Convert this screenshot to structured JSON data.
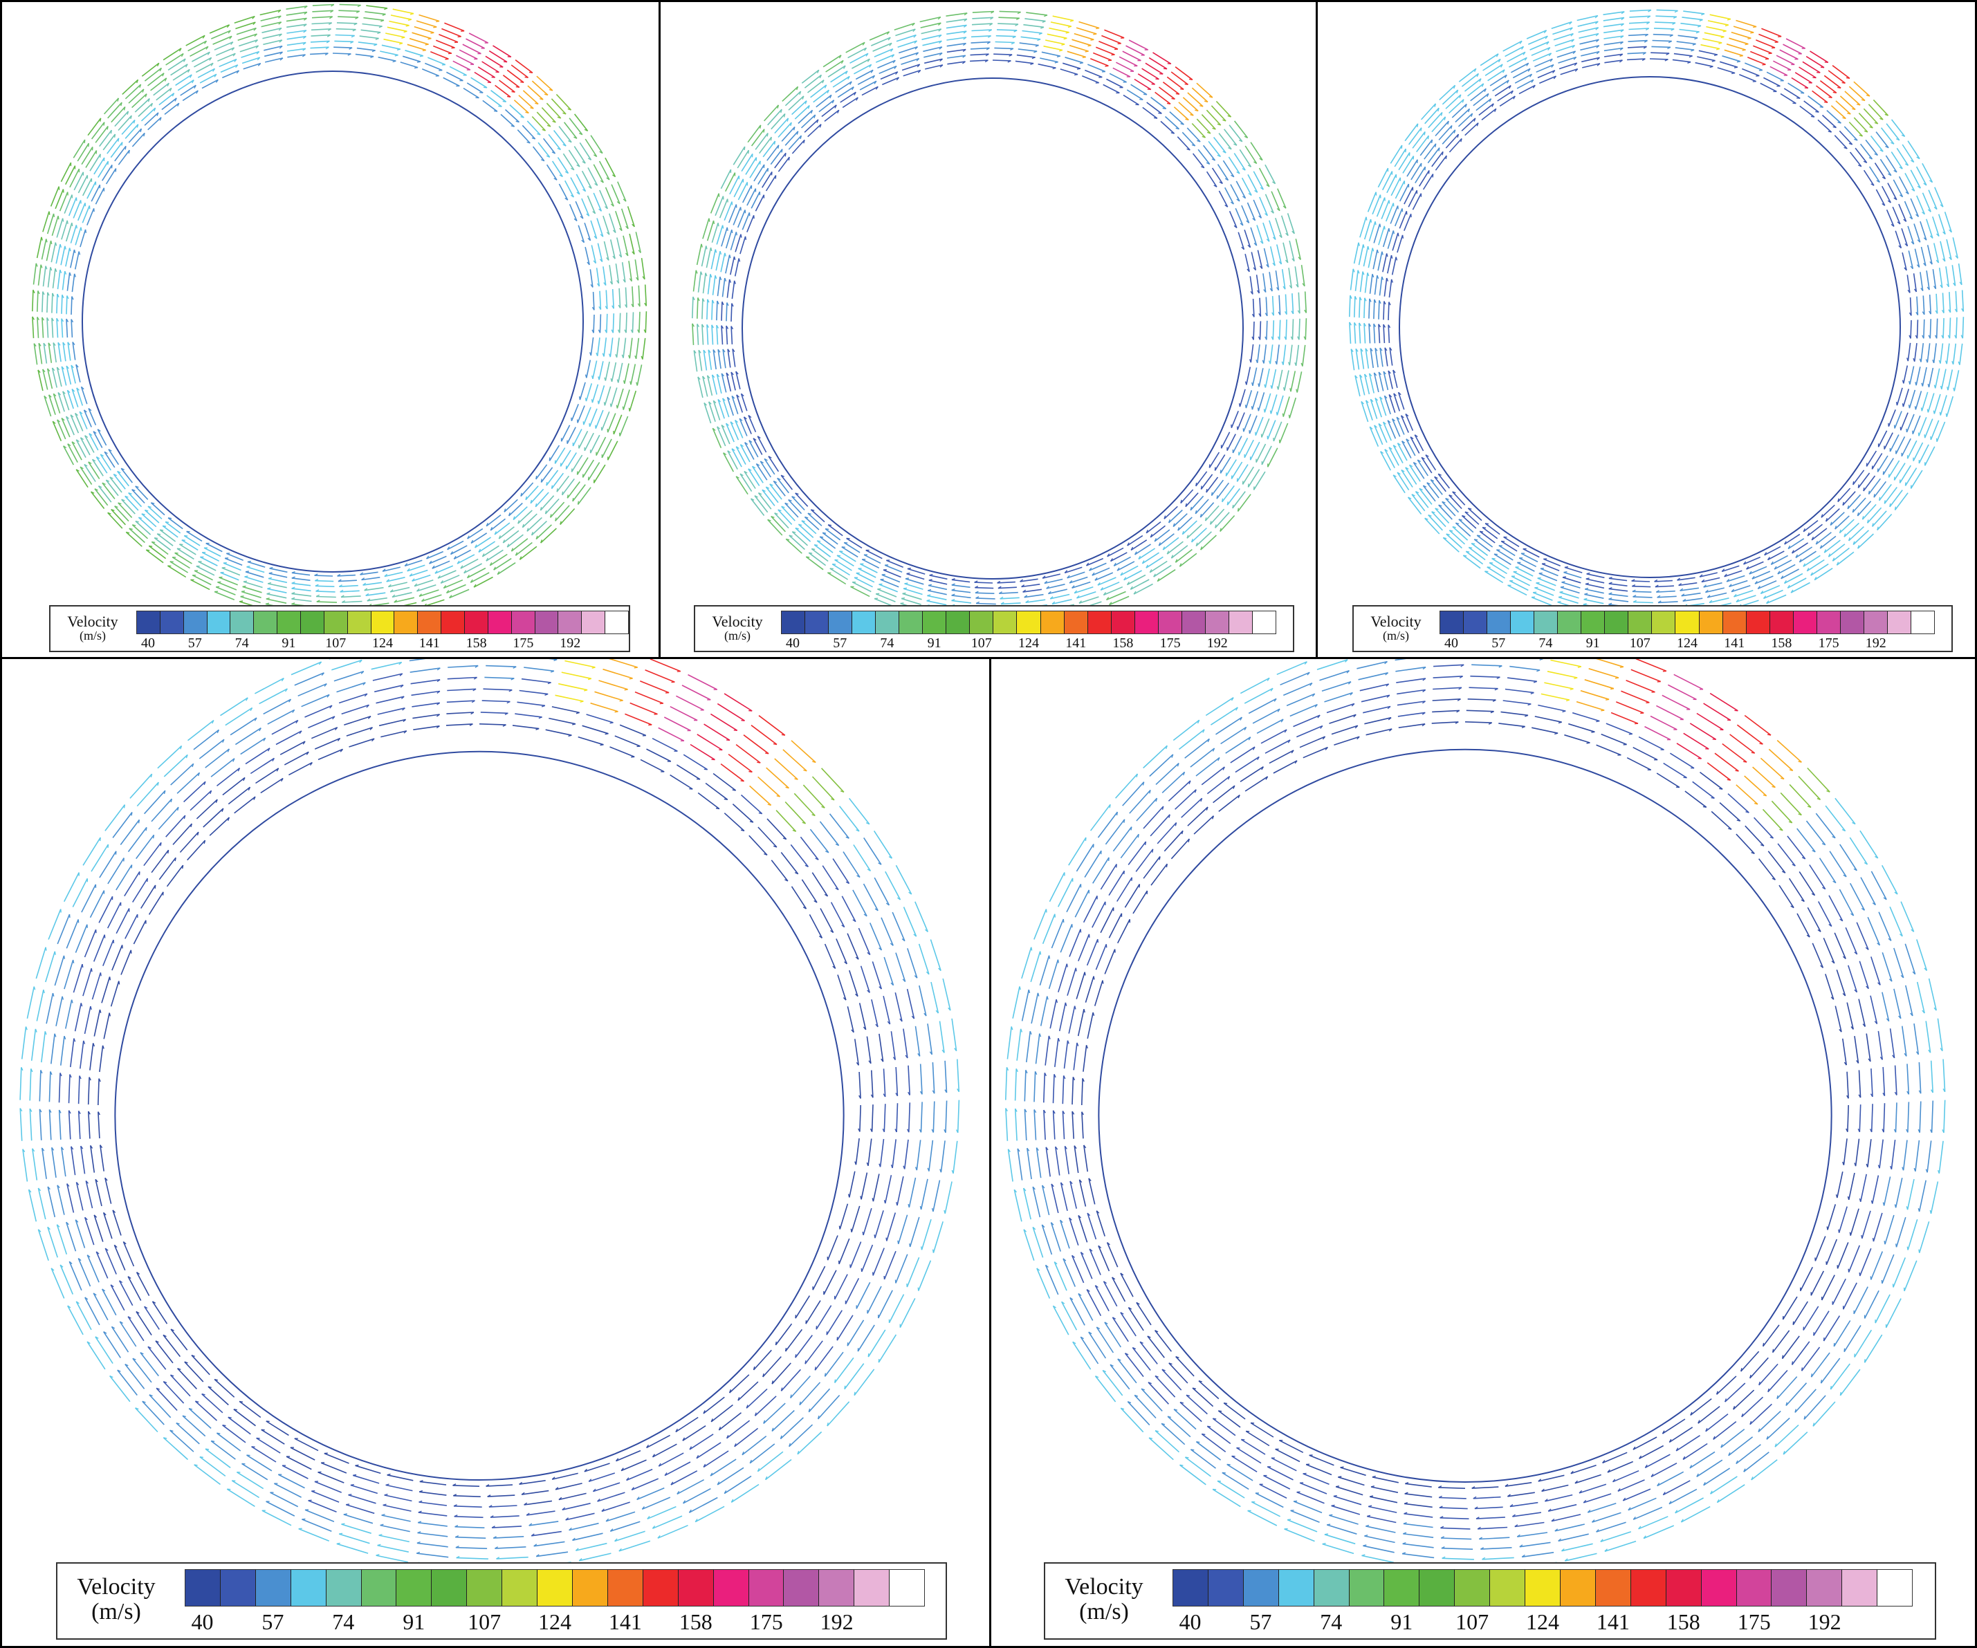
{
  "legend": {
    "title": "Velocity",
    "unit": "(m/s)",
    "ticks": [
      "40",
      "57",
      "74",
      "91",
      "107",
      "124",
      "141",
      "158",
      "175",
      "192"
    ],
    "colors": [
      "#2f4aa0",
      "#3a57b0",
      "#4a8fd0",
      "#5cc8e8",
      "#6ec4b4",
      "#6bbf6a",
      "#62b845",
      "#59b040",
      "#84c040",
      "#b7d33a",
      "#f2e41c",
      "#f7a91c",
      "#ef6a24",
      "#ec2a2a",
      "#e41c46",
      "#ea1f7d",
      "#d2449b",
      "#b257a5",
      "#c77bb8",
      "#e9b4d8",
      "#ffffff"
    ]
  },
  "panels": [
    {
      "id": "panel-1"
    },
    {
      "id": "panel-2"
    },
    {
      "id": "panel-3"
    },
    {
      "id": "panel-4"
    },
    {
      "id": "panel-5"
    }
  ]
}
